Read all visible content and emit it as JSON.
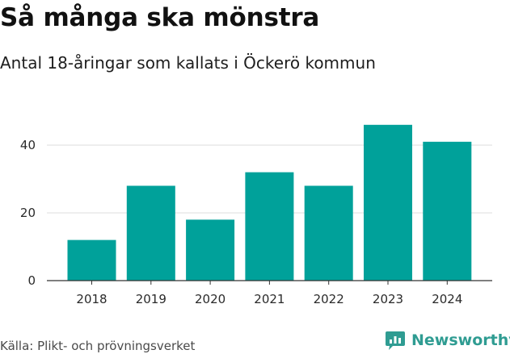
{
  "header": {
    "title": "Så många ska mönstra",
    "subtitle": "Antal 18-åringar som kallats i Öckerö kommun"
  },
  "footer": {
    "source": "Källa: Plikt- och prövningsverket",
    "brand": "Newsworthy"
  },
  "colors": {
    "bar": "#00a19a",
    "grid": "#dedede",
    "axis": "#333333",
    "brand": "#2f9c92"
  },
  "chart_data": {
    "type": "bar",
    "title": "Så många ska mönstra",
    "subtitle": "Antal 18-åringar som kallats i Öckerö kommun",
    "categories": [
      "2018",
      "2019",
      "2020",
      "2021",
      "2022",
      "2023",
      "2024"
    ],
    "values": [
      12,
      28,
      18,
      32,
      28,
      46,
      41
    ],
    "xlabel": "",
    "ylabel": "",
    "ylim": [
      0,
      50
    ],
    "yticks": [
      0,
      20,
      40
    ],
    "grid": true,
    "legend": "none"
  }
}
